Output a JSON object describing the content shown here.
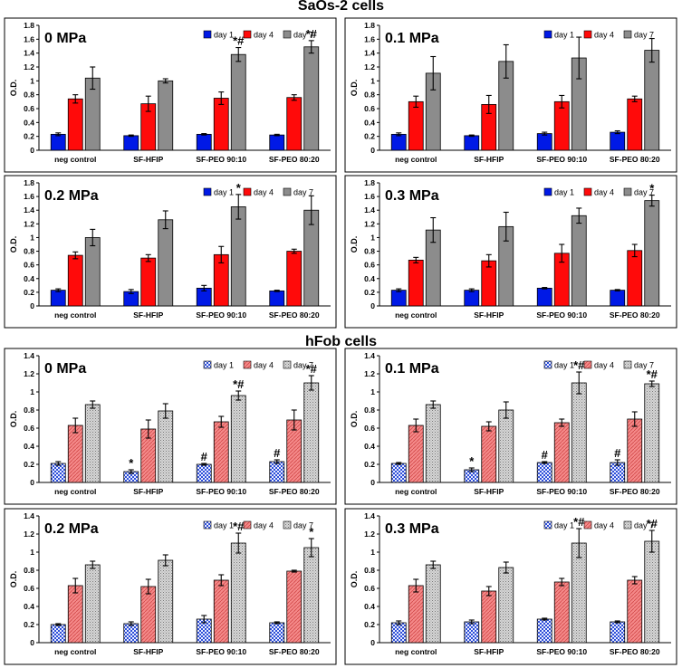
{
  "sections": [
    {
      "title": "SaOs-2 cells"
    },
    {
      "title": "hFob cells"
    }
  ],
  "colors": {
    "saos_day1": "#0019e6",
    "saos_day4": "#ff0a0a",
    "saos_day7": "#8c8c8c",
    "hfob_day1": "#5a78e6",
    "hfob_day4": "#f07a7a",
    "hfob_day7": "#bdbdbd",
    "frame": "#000000"
  },
  "chart_data": [
    {
      "type": "bar",
      "title": "0 MPa",
      "ylabel": "O.D.",
      "ylim": [
        0,
        1.8
      ],
      "yticks": [
        0,
        0.2,
        0.4,
        0.6,
        0.8,
        1,
        1.2,
        1.4,
        1.6,
        1.8
      ],
      "style": "solid",
      "legend_position": "top-right",
      "categories": [
        "neg control",
        "SF-HFIP",
        "SF-PEO 90:10",
        "SF-PEO 80:20"
      ],
      "series": [
        {
          "name": "day 1",
          "values": [
            0.23,
            0.21,
            0.23,
            0.22
          ],
          "errors": [
            0.02,
            0.01,
            0.01,
            0.01
          ]
        },
        {
          "name": "day 4",
          "values": [
            0.74,
            0.67,
            0.75,
            0.76
          ],
          "errors": [
            0.06,
            0.11,
            0.09,
            0.04
          ]
        },
        {
          "name": "day 7",
          "values": [
            1.04,
            1.0,
            1.38,
            1.49
          ],
          "errors": [
            0.16,
            0.03,
            0.1,
            0.09
          ]
        }
      ],
      "annotations": [
        {
          "category": 2,
          "series": 2,
          "text": "*#"
        },
        {
          "category": 3,
          "series": 2,
          "text": "*#"
        }
      ]
    },
    {
      "type": "bar",
      "title": "0.1 MPa",
      "ylabel": "O.D.",
      "ylim": [
        0,
        1.8
      ],
      "yticks": [
        0,
        0.2,
        0.4,
        0.6,
        0.8,
        1,
        1.2,
        1.4,
        1.6,
        1.8
      ],
      "style": "solid",
      "legend_position": "top-right",
      "categories": [
        "neg control",
        "SF-HFIP",
        "SF-PEO 90:10",
        "SF-PEO 80:20"
      ],
      "series": [
        {
          "name": "day 1",
          "values": [
            0.23,
            0.21,
            0.24,
            0.26
          ],
          "errors": [
            0.02,
            0.01,
            0.02,
            0.02
          ]
        },
        {
          "name": "day 4",
          "values": [
            0.7,
            0.66,
            0.7,
            0.74
          ],
          "errors": [
            0.08,
            0.13,
            0.09,
            0.04
          ]
        },
        {
          "name": "day 7",
          "values": [
            1.11,
            1.28,
            1.33,
            1.44
          ],
          "errors": [
            0.24,
            0.24,
            0.3,
            0.17
          ]
        }
      ],
      "annotations": []
    },
    {
      "type": "bar",
      "title": "0.2 MPa",
      "ylabel": "O.D.",
      "ylim": [
        0,
        1.8
      ],
      "yticks": [
        0,
        0.2,
        0.4,
        0.6,
        0.8,
        1,
        1.2,
        1.4,
        1.6,
        1.8
      ],
      "style": "solid",
      "legend_position": "top-right",
      "categories": [
        "neg control",
        "SF-HFIP",
        "SF-PEO 90:10",
        "SF-PEO 80:20"
      ],
      "series": [
        {
          "name": "day 1",
          "values": [
            0.23,
            0.21,
            0.26,
            0.22
          ],
          "errors": [
            0.02,
            0.03,
            0.04,
            0.01
          ]
        },
        {
          "name": "day 4",
          "values": [
            0.74,
            0.7,
            0.75,
            0.8
          ],
          "errors": [
            0.05,
            0.05,
            0.12,
            0.03
          ]
        },
        {
          "name": "day 7",
          "values": [
            1.0,
            1.26,
            1.45,
            1.4
          ],
          "errors": [
            0.12,
            0.13,
            0.18,
            0.21
          ]
        }
      ],
      "annotations": [
        {
          "category": 2,
          "series": 2,
          "text": "*"
        }
      ]
    },
    {
      "type": "bar",
      "title": "0.3 MPa",
      "ylabel": "O.D.",
      "ylim": [
        0,
        1.8
      ],
      "yticks": [
        0,
        0.2,
        0.4,
        0.6,
        0.8,
        1,
        1.2,
        1.4,
        1.6,
        1.8
      ],
      "style": "solid",
      "legend_position": "top-right",
      "categories": [
        "neg control",
        "SF-HFIP",
        "SF-PEO 90:10",
        "SF-PEO 80:20"
      ],
      "series": [
        {
          "name": "day 1",
          "values": [
            0.23,
            0.23,
            0.26,
            0.23
          ],
          "errors": [
            0.02,
            0.02,
            0.01,
            0.01
          ]
        },
        {
          "name": "day 4",
          "values": [
            0.67,
            0.66,
            0.77,
            0.81
          ],
          "errors": [
            0.04,
            0.09,
            0.13,
            0.09
          ]
        },
        {
          "name": "day 7",
          "values": [
            1.11,
            1.16,
            1.32,
            1.54
          ],
          "errors": [
            0.18,
            0.21,
            0.11,
            0.08
          ]
        }
      ],
      "annotations": [
        {
          "category": 3,
          "series": 2,
          "text": "*"
        }
      ]
    },
    {
      "type": "bar",
      "title": "0 MPa",
      "ylabel": "O.D.",
      "ylim": [
        0,
        1.4
      ],
      "yticks": [
        0,
        0.2,
        0.4,
        0.6,
        0.8,
        1,
        1.2,
        1.4
      ],
      "style": "pattern",
      "legend_position": "top-right",
      "categories": [
        "neg control",
        "SF-HFIP",
        "SF-PEO 90:10",
        "SF-PEO 80:20"
      ],
      "series": [
        {
          "name": "day 1",
          "values": [
            0.21,
            0.12,
            0.2,
            0.23
          ],
          "errors": [
            0.02,
            0.02,
            0.01,
            0.02
          ]
        },
        {
          "name": "day 4",
          "values": [
            0.63,
            0.59,
            0.67,
            0.69
          ],
          "errors": [
            0.08,
            0.1,
            0.06,
            0.11
          ]
        },
        {
          "name": "day 7",
          "values": [
            0.86,
            0.79,
            0.96,
            1.1
          ],
          "errors": [
            0.04,
            0.08,
            0.05,
            0.08
          ]
        }
      ],
      "annotations": [
        {
          "category": 1,
          "series": 0,
          "text": "*"
        },
        {
          "category": 2,
          "series": 0,
          "text": "#"
        },
        {
          "category": 3,
          "series": 0,
          "text": "#"
        },
        {
          "category": 2,
          "series": 2,
          "text": "*#"
        },
        {
          "category": 3,
          "series": 2,
          "text": "*#"
        }
      ]
    },
    {
      "type": "bar",
      "title": "0.1 MPa",
      "ylabel": "O.D.",
      "ylim": [
        0,
        1.4
      ],
      "yticks": [
        0,
        0.2,
        0.4,
        0.6,
        0.8,
        1,
        1.2,
        1.4
      ],
      "style": "pattern",
      "legend_position": "top-right",
      "categories": [
        "neg control",
        "SF-HFIP",
        "SF-PEO 90:10",
        "SF-PEO 80:20"
      ],
      "series": [
        {
          "name": "day 1",
          "values": [
            0.21,
            0.14,
            0.22,
            0.22
          ],
          "errors": [
            0.01,
            0.02,
            0.01,
            0.03
          ]
        },
        {
          "name": "day 4",
          "values": [
            0.63,
            0.62,
            0.66,
            0.7
          ],
          "errors": [
            0.07,
            0.05,
            0.04,
            0.08
          ]
        },
        {
          "name": "day 7",
          "values": [
            0.86,
            0.8,
            1.1,
            1.09
          ],
          "errors": [
            0.04,
            0.09,
            0.12,
            0.03
          ]
        }
      ],
      "annotations": [
        {
          "category": 1,
          "series": 0,
          "text": "*"
        },
        {
          "category": 2,
          "series": 0,
          "text": "#"
        },
        {
          "category": 3,
          "series": 0,
          "text": "#"
        },
        {
          "category": 2,
          "series": 2,
          "text": "*#"
        },
        {
          "category": 3,
          "series": 2,
          "text": "*#"
        }
      ]
    },
    {
      "type": "bar",
      "title": "0.2 MPa",
      "ylabel": "O.D.",
      "ylim": [
        0,
        1.4
      ],
      "yticks": [
        0,
        0.2,
        0.4,
        0.6,
        0.8,
        1,
        1.2,
        1.4
      ],
      "style": "pattern",
      "legend_position": "top-right",
      "categories": [
        "neg control",
        "SF-HFIP",
        "SF-PEO 90:10",
        "SF-PEO 80:20"
      ],
      "series": [
        {
          "name": "day 1",
          "values": [
            0.2,
            0.21,
            0.26,
            0.22
          ],
          "errors": [
            0.01,
            0.02,
            0.04,
            0.01
          ]
        },
        {
          "name": "day 4",
          "values": [
            0.63,
            0.62,
            0.69,
            0.79
          ],
          "errors": [
            0.08,
            0.08,
            0.06,
            0.01
          ]
        },
        {
          "name": "day 7",
          "values": [
            0.86,
            0.91,
            1.1,
            1.05
          ],
          "errors": [
            0.04,
            0.06,
            0.11,
            0.1
          ]
        }
      ],
      "annotations": [
        {
          "category": 2,
          "series": 2,
          "text": "*#"
        },
        {
          "category": 3,
          "series": 2,
          "text": "*"
        }
      ]
    },
    {
      "type": "bar",
      "title": "0.3 MPa",
      "ylabel": "O.D.",
      "ylim": [
        0,
        1.4
      ],
      "yticks": [
        0,
        0.2,
        0.4,
        0.6,
        0.8,
        1,
        1.2,
        1.4
      ],
      "style": "pattern",
      "legend_position": "top-right",
      "categories": [
        "neg control",
        "SF-HFIP",
        "SF-PEO 90:10",
        "SF-PEO 80:20"
      ],
      "series": [
        {
          "name": "day 1",
          "values": [
            0.22,
            0.23,
            0.26,
            0.23
          ],
          "errors": [
            0.02,
            0.02,
            0.01,
            0.01
          ]
        },
        {
          "name": "day 4",
          "values": [
            0.63,
            0.57,
            0.67,
            0.69
          ],
          "errors": [
            0.07,
            0.05,
            0.04,
            0.04
          ]
        },
        {
          "name": "day 7",
          "values": [
            0.86,
            0.83,
            1.1,
            1.12
          ],
          "errors": [
            0.04,
            0.06,
            0.16,
            0.12
          ]
        }
      ],
      "annotations": [
        {
          "category": 2,
          "series": 2,
          "text": "*#"
        },
        {
          "category": 3,
          "series": 2,
          "text": "*#"
        }
      ]
    }
  ]
}
